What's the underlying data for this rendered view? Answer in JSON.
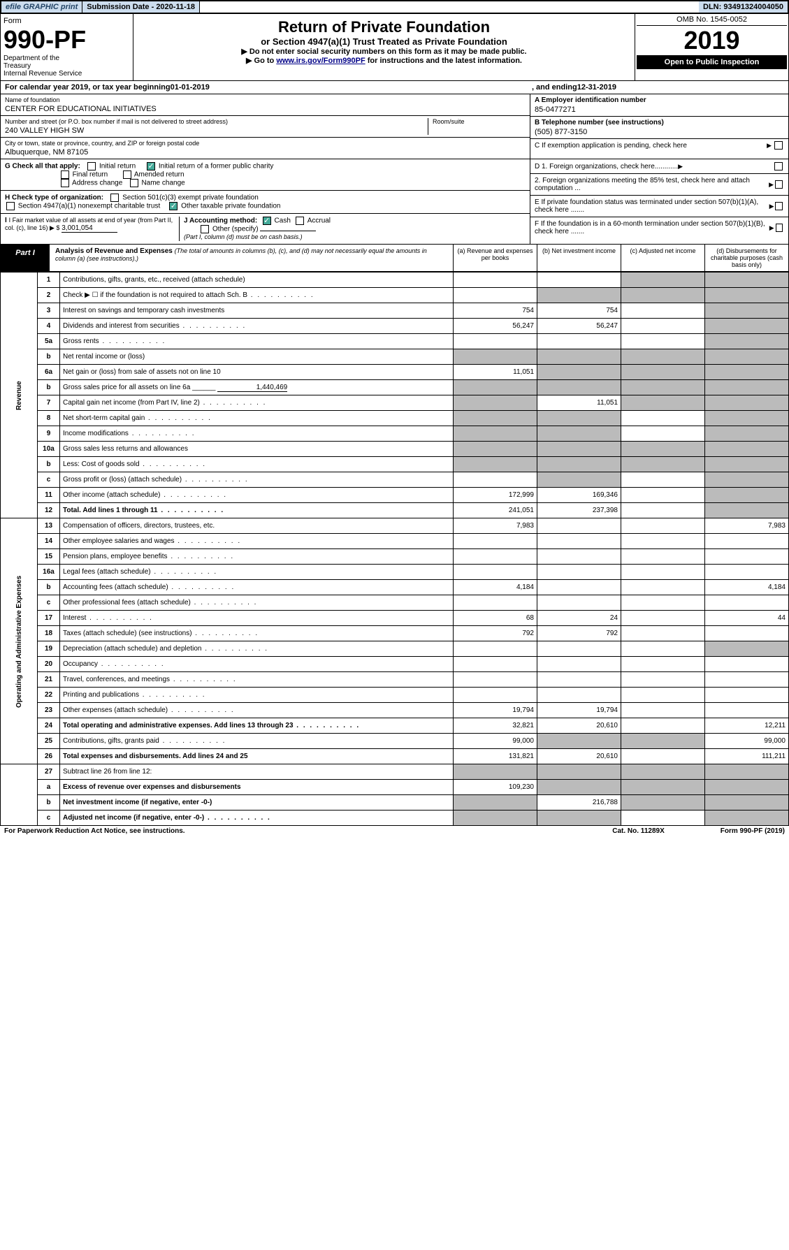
{
  "topbar": {
    "efile": "efile GRAPHIC print",
    "submission": "Submission Date - 2020-11-18",
    "dln": "DLN: 93491324004050"
  },
  "header": {
    "form_word": "Form",
    "form_no": "990-PF",
    "dept": "Department of the Treasury\nInternal Revenue Service",
    "title": "Return of Private Foundation",
    "subtitle": "or Section 4947(a)(1) Trust Treated as Private Foundation",
    "instr1": "▶ Do not enter social security numbers on this form as it may be made public.",
    "instr2_pre": "▶ Go to ",
    "instr2_link": "www.irs.gov/Form990PF",
    "instr2_post": " for instructions and the latest information.",
    "omb": "OMB No. 1545-0052",
    "year": "2019",
    "open": "Open to Public Inspection"
  },
  "calyear": {
    "pre": "For calendar year 2019, or tax year beginning ",
    "begin": "01-01-2019",
    "mid": ", and ending ",
    "end": "12-31-2019"
  },
  "info": {
    "name_label": "Name of foundation",
    "name": "CENTER FOR EDUCATIONAL INITIATIVES",
    "addr_label": "Number and street (or P.O. box number if mail is not delivered to street address)",
    "addr": "240 VALLEY HIGH SW",
    "room_label": "Room/suite",
    "city_label": "City or town, state or province, country, and ZIP or foreign postal code",
    "city": "Albuquerque, NM  87105",
    "ein_label": "A Employer identification number",
    "ein": "85-0477271",
    "tel_label": "B Telephone number (see instructions)",
    "tel": "(505) 877-3150",
    "c_label": "C If exemption application is pending, check here"
  },
  "checks": {
    "g_label": "G Check all that apply:",
    "initial": "Initial return",
    "initial_former": "Initial return of a former public charity",
    "final": "Final return",
    "amended": "Amended return",
    "addr_change": "Address change",
    "name_change": "Name change",
    "h_label": "H Check type of organization:",
    "sec501": "Section 501(c)(3) exempt private foundation",
    "sec4947": "Section 4947(a)(1) nonexempt charitable trust",
    "other_tax": "Other taxable private foundation",
    "i_label": "I Fair market value of all assets at end of year (from Part II, col. (c), line 16) ▶ $",
    "i_val": "3,001,054",
    "j_label": "J Accounting method:",
    "cash": "Cash",
    "accrual": "Accrual",
    "other_spec": "Other (specify)",
    "j_note": "(Part I, column (d) must be on cash basis.)",
    "d1": "D 1. Foreign organizations, check here............",
    "d2": "2. Foreign organizations meeting the 85% test, check here and attach computation ...",
    "e": "E If private foundation status was terminated under section 507(b)(1)(A), check here .......",
    "f": "F If the foundation is in a 60-month termination under section 507(b)(1)(B), check here .......",
    "initial_former_on": true,
    "cash_on": true,
    "other_tax_on": true
  },
  "part1": {
    "label": "Part I",
    "title": "Analysis of Revenue and Expenses",
    "note": "(The total of amounts in columns (b), (c), and (d) may not necessarily equal the amounts in column (a) (see instructions).)",
    "col_a": "(a) Revenue and expenses per books",
    "col_b": "(b) Net investment income",
    "col_c": "(c) Adjusted net income",
    "col_d": "(d) Disbursements for charitable purposes (cash basis only)"
  },
  "sideRevenue": "Revenue",
  "sideExpenses": "Operating and Administrative Expenses",
  "rows": [
    {
      "n": "1",
      "d": "Contributions, gifts, grants, etc., received (attach schedule)",
      "a": "",
      "b": "",
      "c": "shade",
      "dcol": "shade"
    },
    {
      "n": "2",
      "d": "Check ▶ ☐ if the foundation is not required to attach Sch. B",
      "a": "",
      "b": "shade",
      "c": "shade",
      "dcol": "shade",
      "dots": true
    },
    {
      "n": "3",
      "d": "Interest on savings and temporary cash investments",
      "a": "754",
      "b": "754",
      "c": "",
      "dcol": "shade"
    },
    {
      "n": "4",
      "d": "Dividends and interest from securities",
      "a": "56,247",
      "b": "56,247",
      "c": "",
      "dcol": "shade",
      "dots": true
    },
    {
      "n": "5a",
      "d": "Gross rents",
      "a": "",
      "b": "",
      "c": "",
      "dcol": "shade",
      "dots": true
    },
    {
      "n": "b",
      "d": "Net rental income or (loss)",
      "a": "shade",
      "b": "shade",
      "c": "shade",
      "dcol": "shade",
      "inline": true
    },
    {
      "n": "6a",
      "d": "Net gain or (loss) from sale of assets not on line 10",
      "a": "11,051",
      "b": "shade",
      "c": "shade",
      "dcol": "shade"
    },
    {
      "n": "b",
      "d": "Gross sales price for all assets on line 6a ______",
      "a": "shade",
      "b": "shade",
      "c": "shade",
      "dcol": "shade",
      "val": "1,440,469"
    },
    {
      "n": "7",
      "d": "Capital gain net income (from Part IV, line 2)",
      "a": "shade",
      "b": "11,051",
      "c": "shade",
      "dcol": "shade",
      "dots": true
    },
    {
      "n": "8",
      "d": "Net short-term capital gain",
      "a": "shade",
      "b": "shade",
      "c": "",
      "dcol": "shade",
      "dots": true
    },
    {
      "n": "9",
      "d": "Income modifications",
      "a": "shade",
      "b": "shade",
      "c": "",
      "dcol": "shade",
      "dots": true
    },
    {
      "n": "10a",
      "d": "Gross sales less returns and allowances",
      "a": "shade",
      "b": "shade",
      "c": "shade",
      "dcol": "shade",
      "inline": true
    },
    {
      "n": "b",
      "d": "Less: Cost of goods sold",
      "a": "shade",
      "b": "shade",
      "c": "shade",
      "dcol": "shade",
      "inline": true,
      "dots": true
    },
    {
      "n": "c",
      "d": "Gross profit or (loss) (attach schedule)",
      "a": "",
      "b": "shade",
      "c": "",
      "dcol": "shade",
      "dots": true
    },
    {
      "n": "11",
      "d": "Other income (attach schedule)",
      "a": "172,999",
      "b": "169,346",
      "c": "",
      "dcol": "shade",
      "dots": true
    },
    {
      "n": "12",
      "d": "Total. Add lines 1 through 11",
      "a": "241,051",
      "b": "237,398",
      "c": "",
      "dcol": "shade",
      "bold": true,
      "dots": true
    }
  ],
  "expRows": [
    {
      "n": "13",
      "d": "Compensation of officers, directors, trustees, etc.",
      "a": "7,983",
      "b": "",
      "c": "",
      "dcol": "7,983"
    },
    {
      "n": "14",
      "d": "Other employee salaries and wages",
      "a": "",
      "b": "",
      "c": "",
      "dcol": "",
      "dots": true
    },
    {
      "n": "15",
      "d": "Pension plans, employee benefits",
      "a": "",
      "b": "",
      "c": "",
      "dcol": "",
      "dots": true
    },
    {
      "n": "16a",
      "d": "Legal fees (attach schedule)",
      "a": "",
      "b": "",
      "c": "",
      "dcol": "",
      "dots": true
    },
    {
      "n": "b",
      "d": "Accounting fees (attach schedule)",
      "a": "4,184",
      "b": "",
      "c": "",
      "dcol": "4,184",
      "dots": true
    },
    {
      "n": "c",
      "d": "Other professional fees (attach schedule)",
      "a": "",
      "b": "",
      "c": "",
      "dcol": "",
      "dots": true
    },
    {
      "n": "17",
      "d": "Interest",
      "a": "68",
      "b": "24",
      "c": "",
      "dcol": "44",
      "dots": true
    },
    {
      "n": "18",
      "d": "Taxes (attach schedule) (see instructions)",
      "a": "792",
      "b": "792",
      "c": "",
      "dcol": "",
      "dots": true
    },
    {
      "n": "19",
      "d": "Depreciation (attach schedule) and depletion",
      "a": "",
      "b": "",
      "c": "",
      "dcol": "shade",
      "dots": true
    },
    {
      "n": "20",
      "d": "Occupancy",
      "a": "",
      "b": "",
      "c": "",
      "dcol": "",
      "dots": true
    },
    {
      "n": "21",
      "d": "Travel, conferences, and meetings",
      "a": "",
      "b": "",
      "c": "",
      "dcol": "",
      "dots": true
    },
    {
      "n": "22",
      "d": "Printing and publications",
      "a": "",
      "b": "",
      "c": "",
      "dcol": "",
      "dots": true
    },
    {
      "n": "23",
      "d": "Other expenses (attach schedule)",
      "a": "19,794",
      "b": "19,794",
      "c": "",
      "dcol": "",
      "dots": true
    },
    {
      "n": "24",
      "d": "Total operating and administrative expenses. Add lines 13 through 23",
      "a": "32,821",
      "b": "20,610",
      "c": "",
      "dcol": "12,211",
      "bold": true,
      "dots": true
    },
    {
      "n": "25",
      "d": "Contributions, gifts, grants paid",
      "a": "99,000",
      "b": "shade",
      "c": "shade",
      "dcol": "99,000",
      "dots": true
    },
    {
      "n": "26",
      "d": "Total expenses and disbursements. Add lines 24 and 25",
      "a": "131,821",
      "b": "20,610",
      "c": "",
      "dcol": "111,211",
      "bold": true
    }
  ],
  "bottomRows": [
    {
      "n": "27",
      "d": "Subtract line 26 from line 12:",
      "a": "shade",
      "b": "shade",
      "c": "shade",
      "dcol": "shade"
    },
    {
      "n": "a",
      "d": "Excess of revenue over expenses and disbursements",
      "a": "109,230",
      "b": "shade",
      "c": "shade",
      "dcol": "shade",
      "bold": true
    },
    {
      "n": "b",
      "d": "Net investment income (if negative, enter -0-)",
      "a": "shade",
      "b": "216,788",
      "c": "shade",
      "dcol": "shade",
      "bold": true
    },
    {
      "n": "c",
      "d": "Adjusted net income (if negative, enter -0-)",
      "a": "shade",
      "b": "shade",
      "c": "",
      "dcol": "shade",
      "bold": true,
      "dots": true
    }
  ],
  "footer": {
    "left": "For Paperwork Reduction Act Notice, see instructions.",
    "mid": "Cat. No. 11289X",
    "right": "Form 990-PF (2019)"
  }
}
